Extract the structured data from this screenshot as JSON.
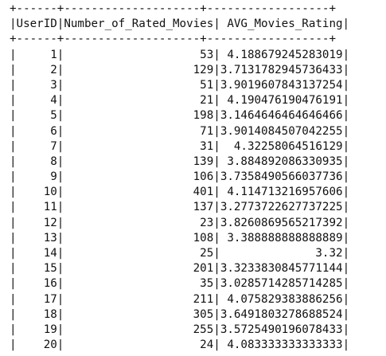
{
  "table": {
    "border_top": "+------+--------------------+------------------+",
    "header_line": "|UserID|Number_of_Rated_Movies| AVG_Movies_Rating|",
    "border_mid": "+------+--------------------+------------------+",
    "border_bottom": "+------+--------------------+------------------+",
    "headers": [
      "UserID",
      "Number_of_Rated_Movies",
      "AVG_Movies_Rating"
    ],
    "rows": [
      [
        "1",
        "53",
        "4.188679245283019"
      ],
      [
        "2",
        "129",
        "3.7131782945736433"
      ],
      [
        "3",
        "51",
        "3.9019607843137254"
      ],
      [
        "4",
        "21",
        "4.190476190476191"
      ],
      [
        "5",
        "198",
        "3.1464646464646466"
      ],
      [
        "6",
        "71",
        "3.9014084507042255"
      ],
      [
        "7",
        "31",
        "4.32258064516129"
      ],
      [
        "8",
        "139",
        "3.884892086330935"
      ],
      [
        "9",
        "106",
        "3.7358490566037736"
      ],
      [
        "10",
        "401",
        "4.114713216957606"
      ],
      [
        "11",
        "137",
        "3.2773722627737225"
      ],
      [
        "12",
        "23",
        "3.8260869565217392"
      ],
      [
        "13",
        "108",
        "3.388888888888889"
      ],
      [
        "14",
        "25",
        "3.32"
      ],
      [
        "15",
        "201",
        "3.3233830845771144"
      ],
      [
        "16",
        "35",
        "3.0285714285714285"
      ],
      [
        "17",
        "211",
        "4.075829383886256"
      ],
      [
        "18",
        "305",
        "3.6491803278688524"
      ],
      [
        "19",
        "255",
        "3.5725490196078433"
      ],
      [
        "20",
        "24",
        "4.083333333333333"
      ]
    ]
  }
}
